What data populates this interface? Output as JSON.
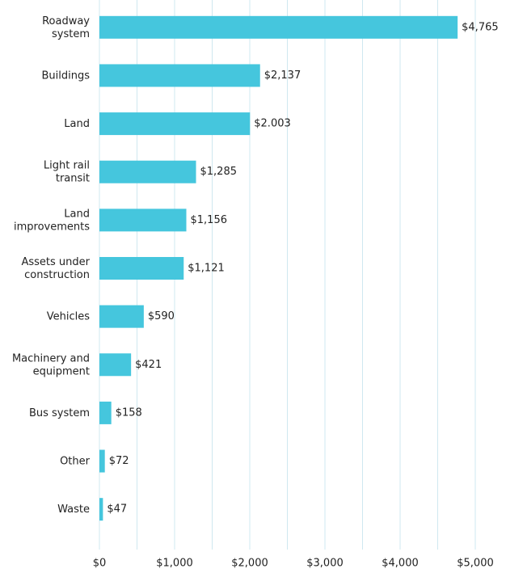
{
  "chart_data": {
    "type": "hbar",
    "categories": [
      "Roadway system",
      "Buildings",
      "Land",
      "Light rail transit",
      "Land improvements",
      "Assets under construction",
      "Vehicles",
      "Machinery and equipment",
      "Bus system",
      "Other",
      "Waste"
    ],
    "values": [
      4765,
      2137,
      2003,
      1285,
      1156,
      1121,
      590,
      421,
      158,
      72,
      47
    ],
    "value_labels": [
      "$4,765",
      "$2,137",
      "$2.003",
      "$1,285",
      "$1,156",
      "$1,121",
      "$590",
      "$421",
      "$158",
      "$72",
      "$47"
    ],
    "color": "#45c6dd",
    "xlim": [
      0,
      5000
    ],
    "xticks": [
      {
        "value": 0,
        "label": "$0"
      },
      {
        "value": 1000,
        "label": "$1,000"
      },
      {
        "value": 2000,
        "label": "$2,000"
      },
      {
        "value": 3000,
        "label": "$3,000"
      },
      {
        "value": 4000,
        "label": "$4,000"
      },
      {
        "value": 5000,
        "label": "$5,000"
      }
    ],
    "minor_xticks": [
      500,
      1500,
      2500,
      3500,
      4500
    ],
    "grid": true
  }
}
